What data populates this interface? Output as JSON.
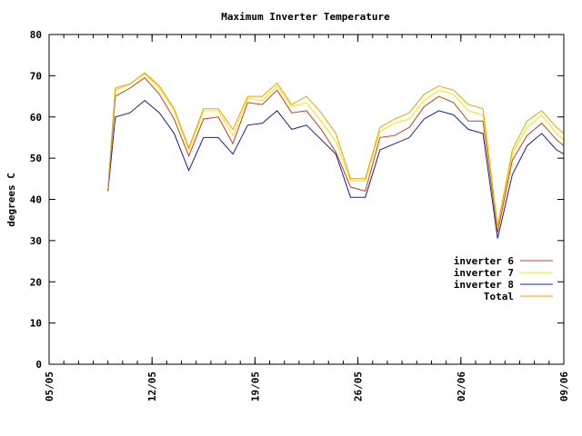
{
  "chart_data": {
    "type": "line",
    "title": "Maximum Inverter Temperature",
    "xlabel": "",
    "ylabel": "degrees C",
    "ylim": [
      0,
      80
    ],
    "yticks": [
      0,
      10,
      20,
      30,
      40,
      50,
      60,
      70,
      80
    ],
    "x_range_days": [
      0,
      35
    ],
    "xticks": [
      {
        "day": 0,
        "label": "05/05"
      },
      {
        "day": 7,
        "label": "12/05"
      },
      {
        "day": 14,
        "label": "19/05"
      },
      {
        "day": 21,
        "label": "26/05"
      },
      {
        "day": 28,
        "label": "02/06"
      },
      {
        "day": 35,
        "label": "09/06"
      }
    ],
    "x_minor_step_days": 1,
    "grid": false,
    "legend_position": "right",
    "x": [
      4,
      4.5,
      5.5,
      6.5,
      7.5,
      8.5,
      9.5,
      10.5,
      11.5,
      12.5,
      13.5,
      14.5,
      15.5,
      16.5,
      17.5,
      18.5,
      19.5,
      20.5,
      21.5,
      22.5,
      23.5,
      24.5,
      25.5,
      26.5,
      27.5,
      28.5,
      29.5,
      30.5,
      31.5,
      32.5,
      33.5,
      34.5,
      35
    ],
    "series": [
      {
        "name": "inverter 6",
        "color": "#c0401f",
        "values": [
          42.5,
          65,
          67,
          69.5,
          65.5,
          59.5,
          50.5,
          59.5,
          60,
          53.5,
          63.5,
          63,
          66.5,
          61,
          61.5,
          57,
          51.5,
          43,
          42,
          55,
          55.5,
          57.5,
          62.5,
          65,
          63.5,
          59,
          59,
          32,
          49.5,
          55.5,
          58.5,
          54.5,
          53
        ]
      },
      {
        "name": "inverter 7",
        "color": "#ffe000",
        "values": [
          42.5,
          66.5,
          68,
          70.5,
          67,
          61.5,
          52,
          61.5,
          61.5,
          55.5,
          64.5,
          64,
          67.5,
          62.5,
          63.5,
          59,
          54,
          44.5,
          44.5,
          56.5,
          58.5,
          59.5,
          64,
          66.5,
          65.5,
          61.5,
          60.5,
          33,
          51,
          57.5,
          60.5,
          56,
          54.5
        ]
      },
      {
        "name": "inverter 8",
        "color": "#1c1c99",
        "values": [
          42,
          60,
          61,
          64,
          61,
          56,
          47,
          55,
          55,
          51,
          58,
          58.5,
          61.5,
          57,
          58,
          54.5,
          51,
          40.5,
          40.5,
          52,
          53.5,
          55,
          59.5,
          61.5,
          60.5,
          57,
          56,
          30.5,
          46,
          53,
          56,
          52,
          51
        ]
      },
      {
        "name": "Total",
        "color": "#f0a000",
        "values": [
          42.5,
          67,
          68,
          70.7,
          67.5,
          62,
          52.5,
          62,
          62,
          57,
          65,
          65,
          68.2,
          63,
          65,
          61,
          56,
          45,
          45,
          57.5,
          59.5,
          61,
          65.5,
          67.5,
          66.5,
          63,
          62,
          33.5,
          52,
          59,
          61.5,
          57.5,
          56
        ]
      }
    ]
  }
}
